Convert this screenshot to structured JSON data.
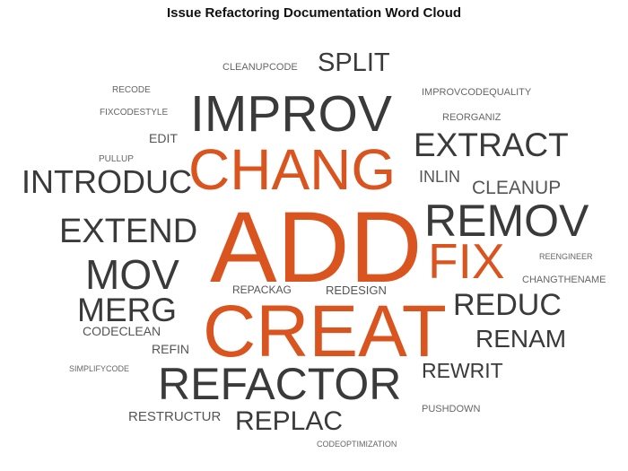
{
  "title": "Issue Refactoring Documentation Word Cloud",
  "colors": {
    "highlight": "#d9541e",
    "dark": "#3a3a3a",
    "medium": "#555555",
    "light": "#666666"
  },
  "words": [
    {
      "text": "ADD",
      "tone": "highlight"
    },
    {
      "text": "CREAT",
      "tone": "highlight"
    },
    {
      "text": "CHANG",
      "tone": "highlight"
    },
    {
      "text": "FIX",
      "tone": "highlight"
    },
    {
      "text": "IMPROV",
      "tone": "dark"
    },
    {
      "text": "REFACTOR",
      "tone": "dark"
    },
    {
      "text": "REMOV",
      "tone": "dark"
    },
    {
      "text": "MOV",
      "tone": "dark"
    },
    {
      "text": "EXTRACT",
      "tone": "dark"
    },
    {
      "text": "EXTEND",
      "tone": "dark"
    },
    {
      "text": "INTRODUC",
      "tone": "dark"
    },
    {
      "text": "MERG",
      "tone": "dark"
    },
    {
      "text": "REDUC",
      "tone": "dark"
    },
    {
      "text": "REPLAC",
      "tone": "dark"
    },
    {
      "text": "RENAM",
      "tone": "dark"
    },
    {
      "text": "SPLIT",
      "tone": "dark"
    },
    {
      "text": "REWRIT",
      "tone": "dark"
    },
    {
      "text": "CLEANUP",
      "tone": "medium"
    },
    {
      "text": "INLIN",
      "tone": "medium"
    },
    {
      "text": "RESTRUCTUR",
      "tone": "medium"
    },
    {
      "text": "CODECLEAN",
      "tone": "medium"
    },
    {
      "text": "REFIN",
      "tone": "medium"
    },
    {
      "text": "EDIT",
      "tone": "medium"
    },
    {
      "text": "REDESIGN",
      "tone": "medium"
    },
    {
      "text": "REPACKAG",
      "tone": "medium"
    },
    {
      "text": "CLEANUPCODE",
      "tone": "light"
    },
    {
      "text": "REORGANIZ",
      "tone": "light"
    },
    {
      "text": "IMPROVCODEQUALITY",
      "tone": "light"
    },
    {
      "text": "FIXCODESTYLE",
      "tone": "light"
    },
    {
      "text": "RECODE",
      "tone": "light"
    },
    {
      "text": "PULLUP",
      "tone": "light"
    },
    {
      "text": "PUSHDOWN",
      "tone": "light"
    },
    {
      "text": "CHANGTHENAME",
      "tone": "light"
    },
    {
      "text": "REENGINEER",
      "tone": "light"
    },
    {
      "text": "SIMPLIFYCODE",
      "tone": "light"
    },
    {
      "text": "CODEOPTIMIZATION",
      "tone": "light"
    }
  ]
}
